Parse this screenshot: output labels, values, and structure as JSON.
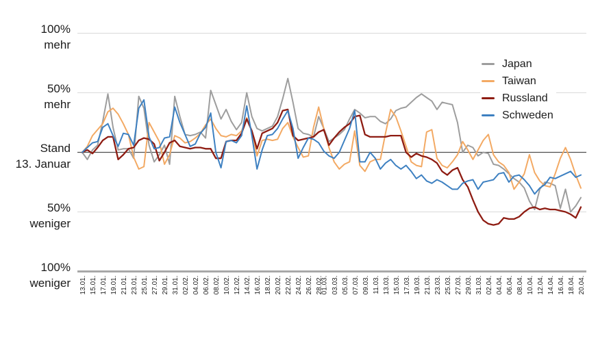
{
  "chart_data": {
    "type": "line",
    "title": "",
    "unit": "%",
    "x_tick_labels": [
      "13.01.",
      "15.01.",
      "17.01.",
      "19.01.",
      "21.01.",
      "23.01.",
      "25.01.",
      "27.01.",
      "29.01.",
      "31.01.",
      "02.02.",
      "04.02.",
      "06.02.",
      "08.02.",
      "10.02.",
      "12.02.",
      "14.02.",
      "16.02.",
      "18.02.",
      "20.02.",
      "22.02.",
      "24.02.",
      "26.02.",
      "28.02.",
      "01.03.",
      "03.03.",
      "05.03.",
      "07.03.",
      "09.03.",
      "11.03.",
      "13.03.",
      "15.03.",
      "17.03.",
      "19.03.",
      "21.03.",
      "23.03.",
      "25.03.",
      "27.03.",
      "29.03.",
      "31.03.",
      "02.04.",
      "04.04.",
      "06.04.",
      "08.04.",
      "10.04.",
      "12.04.",
      "14.04.",
      "16.04.",
      "18.04.",
      "20.04."
    ],
    "y_axis": [
      {
        "line1": "100%",
        "line2": "mehr",
        "value": 100
      },
      {
        "line1": "50%",
        "line2": "mehr",
        "value": 50
      },
      {
        "line1": "Stand",
        "line2": "13. Januar",
        "value": 0
      },
      {
        "line1": "50%",
        "line2": "weniger",
        "value": -50
      },
      {
        "line1": "100%",
        "line2": "weniger",
        "value": -100
      }
    ],
    "gridline_values": [
      100,
      50,
      -50
    ],
    "zero_line_value": 0,
    "bottom_axis_value": -100,
    "ylim": [
      -100,
      115
    ],
    "legend_position": "top-right",
    "colors": {
      "background": "#ffffff",
      "text": "#1a1a1a",
      "gridline": "#d9d9d9",
      "zero_line": "#4d4d4d",
      "bottom_axis": "#a8a8a8"
    },
    "series": [
      {
        "name": "Japan",
        "color": "#9d9d9d",
        "values": [
          0,
          -6,
          2,
          6,
          26,
          49,
          21,
          2,
          3,
          3,
          -5,
          47,
          37,
          6,
          -8,
          -2,
          6,
          -10,
          47,
          30,
          15,
          14,
          15,
          17,
          12,
          52,
          40,
          28,
          36,
          26,
          19,
          25,
          50,
          30,
          20,
          18,
          20,
          22,
          30,
          45,
          62,
          42,
          20,
          16,
          15,
          13,
          30,
          20,
          9,
          12,
          15,
          19,
          28,
          36,
          33,
          29,
          30,
          30,
          26,
          24,
          28,
          35,
          37,
          38,
          42,
          46,
          49,
          46,
          43,
          36,
          42,
          41,
          40,
          25,
          0,
          6,
          4,
          -3,
          0,
          -1,
          -10,
          -11,
          -14,
          -18,
          -22,
          -25,
          -30,
          -41,
          -48,
          -31,
          -25,
          -26,
          -28,
          -47,
          -31,
          -50,
          -45,
          -38
        ]
      },
      {
        "name": "Taiwan",
        "color": "#f3a963",
        "values": [
          0,
          5,
          14,
          19,
          24,
          34,
          37,
          32,
          24,
          15,
          -4,
          -14,
          -12,
          25,
          17,
          9,
          -10,
          -2,
          14,
          12,
          8,
          9,
          12,
          16,
          23,
          28,
          20,
          14,
          13,
          15,
          14,
          18,
          29,
          18,
          -3,
          10,
          11,
          10,
          11,
          20,
          25,
          13,
          4,
          -4,
          -3,
          21,
          38,
          20,
          4,
          -8,
          -14,
          -10,
          -8,
          18,
          -11,
          -16,
          -8,
          -6,
          -6,
          16,
          36,
          30,
          18,
          5,
          -8,
          -11,
          -12,
          17,
          19,
          -5,
          -11,
          -13,
          -8,
          -2,
          9,
          2,
          -6,
          2,
          10,
          15,
          -2,
          -8,
          -11,
          -17,
          -31,
          -25,
          -18,
          -2,
          -17,
          -24,
          -28,
          -29,
          -18,
          -5,
          4,
          -6,
          -19,
          -30
        ]
      },
      {
        "name": "Russland",
        "color": "#8e1c12",
        "values": [
          0,
          2,
          -1,
          4,
          10,
          13,
          13,
          -6,
          -2,
          3,
          4,
          10,
          12,
          11,
          7,
          -7,
          0,
          8,
          10,
          5,
          4,
          3,
          4,
          4,
          3,
          3,
          -5,
          -5,
          9,
          10,
          10,
          16,
          28,
          18,
          3,
          16,
          18,
          20,
          25,
          35,
          36,
          14,
          10,
          11,
          12,
          13,
          17,
          19,
          6,
          12,
          17,
          21,
          24,
          30,
          31,
          15,
          13,
          13,
          13,
          13,
          14,
          14,
          14,
          0,
          -4,
          -1,
          -3,
          -4,
          -6,
          -9,
          -16,
          -19,
          -15,
          -13,
          -23,
          -29,
          -40,
          -50,
          -57,
          -60,
          -61,
          -60,
          -55,
          -56,
          -56,
          -54,
          -50,
          -47,
          -46,
          -48,
          -47,
          -48,
          -48,
          -49,
          -50,
          -52,
          -55,
          -46
        ]
      },
      {
        "name": "Schweden",
        "color": "#3d80c1",
        "values": [
          0,
          4,
          8,
          9,
          21,
          24,
          14,
          5,
          16,
          15,
          6,
          37,
          44,
          13,
          3,
          4,
          12,
          13,
          38,
          25,
          15,
          5,
          7,
          16,
          21,
          33,
          0,
          -13,
          9,
          10,
          8,
          14,
          39,
          14,
          -14,
          2,
          14,
          15,
          20,
          28,
          35,
          20,
          -5,
          4,
          12,
          11,
          8,
          1,
          -3,
          -5,
          0,
          10,
          20,
          35,
          -8,
          -8,
          0,
          -5,
          -14,
          -9,
          -6,
          -11,
          -14,
          -11,
          -16,
          -22,
          -19,
          -24,
          -26,
          -23,
          -25,
          -28,
          -31,
          -31,
          -26,
          -24,
          -23,
          -31,
          -25,
          -24,
          -23,
          -18,
          -17,
          -25,
          -20,
          -19,
          -23,
          -28,
          -35,
          -30,
          -27,
          -21,
          -22,
          -20,
          -18,
          -16,
          -21,
          -19
        ]
      }
    ]
  }
}
